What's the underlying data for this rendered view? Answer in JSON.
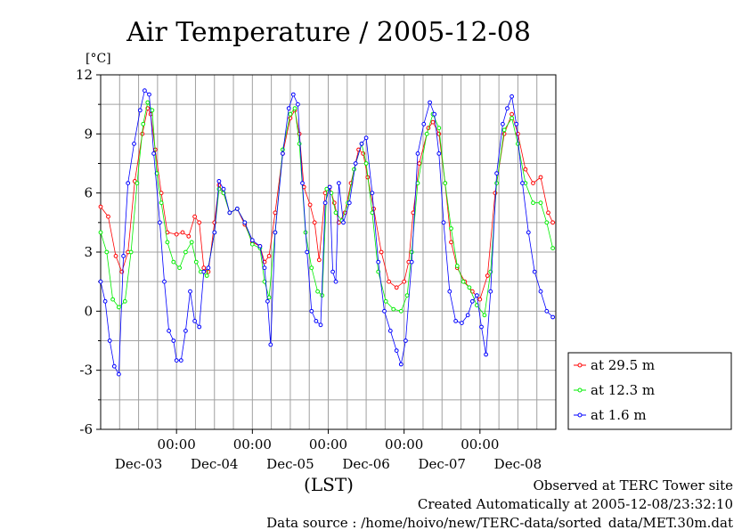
{
  "chart_data": {
    "type": "line",
    "title": "Air Temperature / 2005-12-08",
    "ylabel": "[°C]",
    "xlabel": "(LST)",
    "ylim": [
      -6,
      12
    ],
    "xlim": [
      0,
      6
    ],
    "y_ticks": [
      12,
      9,
      6,
      3,
      0,
      -3,
      -6
    ],
    "y_tick_labels": [
      "12",
      "9",
      "6",
      "3",
      "0",
      "-3",
      "-6"
    ],
    "x_ticks": [
      1,
      2,
      3,
      4,
      5
    ],
    "x_tick_time_labels": [
      "00:00",
      "00:00",
      "00:00",
      "00:00",
      "00:00"
    ],
    "x_day_labels": [
      {
        "x": 0.5,
        "label": "Dec-03"
      },
      {
        "x": 1.5,
        "label": "Dec-04"
      },
      {
        "x": 2.5,
        "label": "Dec-05"
      },
      {
        "x": 3.5,
        "label": "Dec-06"
      },
      {
        "x": 4.5,
        "label": "Dec-07"
      },
      {
        "x": 5.5,
        "label": "Dec-08"
      }
    ],
    "grid": true,
    "legend_position": "right, below plot top",
    "series": [
      {
        "name": "at 29.5 m",
        "color": "#ff0000",
        "points": [
          [
            0.0,
            5.3
          ],
          [
            0.1,
            4.8
          ],
          [
            0.2,
            2.8
          ],
          [
            0.28,
            2.0
          ],
          [
            0.36,
            3.0
          ],
          [
            0.45,
            6.6
          ],
          [
            0.55,
            9.0
          ],
          [
            0.62,
            10.3
          ],
          [
            0.66,
            10.0
          ],
          [
            0.72,
            8.2
          ],
          [
            0.8,
            6.0
          ],
          [
            0.88,
            4.0
          ],
          [
            1.0,
            3.9
          ],
          [
            1.08,
            4.0
          ],
          [
            1.16,
            3.8
          ],
          [
            1.24,
            4.8
          ],
          [
            1.3,
            4.5
          ],
          [
            1.36,
            2.2
          ],
          [
            1.42,
            2.0
          ],
          [
            1.5,
            4.5
          ],
          [
            1.56,
            6.4
          ],
          [
            1.62,
            6.0
          ],
          [
            1.7,
            5.0
          ],
          [
            1.8,
            5.2
          ],
          [
            1.9,
            4.4
          ],
          [
            2.0,
            3.5
          ],
          [
            2.1,
            3.3
          ],
          [
            2.16,
            2.5
          ],
          [
            2.22,
            2.8
          ],
          [
            2.3,
            5.0
          ],
          [
            2.4,
            8.0
          ],
          [
            2.5,
            9.8
          ],
          [
            2.56,
            10.2
          ],
          [
            2.62,
            9.0
          ],
          [
            2.68,
            6.3
          ],
          [
            2.76,
            5.4
          ],
          [
            2.82,
            4.5
          ],
          [
            2.88,
            2.6
          ],
          [
            2.96,
            6.0
          ],
          [
            3.02,
            6.3
          ],
          [
            3.08,
            5.5
          ],
          [
            3.14,
            4.5
          ],
          [
            3.22,
            5.0
          ],
          [
            3.3,
            6.5
          ],
          [
            3.4,
            8.2
          ],
          [
            3.46,
            8.0
          ],
          [
            3.52,
            6.8
          ],
          [
            3.6,
            5.2
          ],
          [
            3.7,
            3.0
          ],
          [
            3.8,
            1.5
          ],
          [
            3.9,
            1.2
          ],
          [
            4.0,
            1.5
          ],
          [
            4.06,
            2.5
          ],
          [
            4.12,
            5.0
          ],
          [
            4.2,
            7.5
          ],
          [
            4.32,
            9.3
          ],
          [
            4.38,
            9.6
          ],
          [
            4.46,
            9.0
          ],
          [
            4.54,
            6.5
          ],
          [
            4.62,
            3.5
          ],
          [
            4.7,
            2.2
          ],
          [
            4.8,
            1.5
          ],
          [
            4.9,
            1.0
          ],
          [
            5.0,
            0.6
          ],
          [
            5.1,
            1.8
          ],
          [
            5.2,
            6.0
          ],
          [
            5.32,
            9.0
          ],
          [
            5.42,
            10.0
          ],
          [
            5.5,
            9.0
          ],
          [
            5.6,
            7.2
          ],
          [
            5.7,
            6.5
          ],
          [
            5.8,
            6.8
          ],
          [
            5.9,
            5.0
          ],
          [
            5.96,
            4.5
          ]
        ]
      },
      {
        "name": "at 12.3 m",
        "color": "#00ee00",
        "points": [
          [
            0.0,
            4.0
          ],
          [
            0.08,
            3.0
          ],
          [
            0.16,
            0.6
          ],
          [
            0.24,
            0.2
          ],
          [
            0.32,
            0.5
          ],
          [
            0.4,
            3.0
          ],
          [
            0.48,
            6.5
          ],
          [
            0.56,
            9.5
          ],
          [
            0.62,
            10.6
          ],
          [
            0.68,
            10.2
          ],
          [
            0.74,
            7.0
          ],
          [
            0.8,
            5.5
          ],
          [
            0.88,
            3.5
          ],
          [
            0.96,
            2.5
          ],
          [
            1.04,
            2.2
          ],
          [
            1.12,
            3.0
          ],
          [
            1.2,
            3.5
          ],
          [
            1.26,
            2.5
          ],
          [
            1.32,
            2.0
          ],
          [
            1.4,
            1.8
          ],
          [
            1.5,
            4.0
          ],
          [
            1.56,
            6.2
          ],
          [
            1.62,
            6.0
          ],
          [
            1.7,
            5.0
          ],
          [
            1.8,
            5.2
          ],
          [
            1.9,
            4.5
          ],
          [
            2.0,
            3.4
          ],
          [
            2.1,
            3.2
          ],
          [
            2.16,
            1.5
          ],
          [
            2.22,
            0.7
          ],
          [
            2.3,
            4.0
          ],
          [
            2.4,
            8.2
          ],
          [
            2.5,
            10.0
          ],
          [
            2.56,
            10.3
          ],
          [
            2.62,
            8.5
          ],
          [
            2.7,
            4.0
          ],
          [
            2.78,
            2.2
          ],
          [
            2.86,
            1.0
          ],
          [
            2.92,
            0.8
          ],
          [
            2.98,
            6.2
          ],
          [
            3.04,
            6.0
          ],
          [
            3.1,
            5.0
          ],
          [
            3.18,
            4.6
          ],
          [
            3.26,
            5.5
          ],
          [
            3.34,
            7.2
          ],
          [
            3.44,
            8.5
          ],
          [
            3.5,
            7.5
          ],
          [
            3.58,
            5.0
          ],
          [
            3.66,
            2.0
          ],
          [
            3.76,
            0.5
          ],
          [
            3.86,
            0.1
          ],
          [
            3.96,
            0.0
          ],
          [
            4.04,
            0.8
          ],
          [
            4.1,
            3.0
          ],
          [
            4.18,
            6.5
          ],
          [
            4.3,
            9.0
          ],
          [
            4.38,
            10.0
          ],
          [
            4.46,
            9.3
          ],
          [
            4.54,
            6.5
          ],
          [
            4.62,
            4.2
          ],
          [
            4.7,
            2.3
          ],
          [
            4.78,
            1.5
          ],
          [
            4.86,
            1.2
          ],
          [
            4.96,
            0.3
          ],
          [
            5.06,
            -0.2
          ],
          [
            5.14,
            2.0
          ],
          [
            5.22,
            6.5
          ],
          [
            5.32,
            9.2
          ],
          [
            5.42,
            9.8
          ],
          [
            5.5,
            8.5
          ],
          [
            5.6,
            6.5
          ],
          [
            5.7,
            5.5
          ],
          [
            5.8,
            5.5
          ],
          [
            5.88,
            4.5
          ],
          [
            5.96,
            3.2
          ]
        ]
      },
      {
        "name": "at 1.6 m",
        "color": "#0000ff",
        "points": [
          [
            0.0,
            1.5
          ],
          [
            0.06,
            0.5
          ],
          [
            0.12,
            -1.5
          ],
          [
            0.18,
            -2.8
          ],
          [
            0.24,
            -3.2
          ],
          [
            0.3,
            2.8
          ],
          [
            0.36,
            6.5
          ],
          [
            0.44,
            8.5
          ],
          [
            0.52,
            10.2
          ],
          [
            0.58,
            11.2
          ],
          [
            0.64,
            11.0
          ],
          [
            0.7,
            8.0
          ],
          [
            0.78,
            4.5
          ],
          [
            0.84,
            1.5
          ],
          [
            0.9,
            -1.0
          ],
          [
            0.96,
            -1.5
          ],
          [
            1.0,
            -2.5
          ],
          [
            1.06,
            -2.5
          ],
          [
            1.12,
            -1.0
          ],
          [
            1.18,
            1.0
          ],
          [
            1.24,
            -0.5
          ],
          [
            1.3,
            -0.8
          ],
          [
            1.36,
            2.0
          ],
          [
            1.42,
            2.2
          ],
          [
            1.5,
            4.0
          ],
          [
            1.56,
            6.6
          ],
          [
            1.62,
            6.2
          ],
          [
            1.7,
            5.0
          ],
          [
            1.8,
            5.2
          ],
          [
            1.9,
            4.5
          ],
          [
            2.0,
            3.6
          ],
          [
            2.1,
            3.3
          ],
          [
            2.16,
            2.2
          ],
          [
            2.2,
            0.5
          ],
          [
            2.24,
            -1.7
          ],
          [
            2.3,
            4.0
          ],
          [
            2.4,
            8.0
          ],
          [
            2.48,
            10.3
          ],
          [
            2.54,
            11.0
          ],
          [
            2.6,
            10.5
          ],
          [
            2.66,
            6.5
          ],
          [
            2.72,
            3.0
          ],
          [
            2.78,
            0.0
          ],
          [
            2.84,
            -0.5
          ],
          [
            2.9,
            -0.7
          ],
          [
            2.96,
            5.5
          ],
          [
            3.02,
            6.3
          ],
          [
            3.06,
            2.0
          ],
          [
            3.1,
            1.5
          ],
          [
            3.14,
            6.5
          ],
          [
            3.2,
            4.5
          ],
          [
            3.28,
            5.5
          ],
          [
            3.36,
            7.5
          ],
          [
            3.44,
            8.5
          ],
          [
            3.5,
            8.8
          ],
          [
            3.58,
            6.0
          ],
          [
            3.66,
            2.5
          ],
          [
            3.74,
            0.0
          ],
          [
            3.82,
            -1.0
          ],
          [
            3.9,
            -2.0
          ],
          [
            3.96,
            -2.7
          ],
          [
            4.02,
            -1.5
          ],
          [
            4.1,
            2.5
          ],
          [
            4.18,
            8.0
          ],
          [
            4.26,
            9.5
          ],
          [
            4.34,
            10.6
          ],
          [
            4.4,
            10.0
          ],
          [
            4.46,
            8.0
          ],
          [
            4.52,
            4.5
          ],
          [
            4.6,
            1.0
          ],
          [
            4.68,
            -0.5
          ],
          [
            4.76,
            -0.6
          ],
          [
            4.84,
            -0.2
          ],
          [
            4.9,
            0.5
          ],
          [
            4.96,
            0.8
          ],
          [
            5.02,
            -0.8
          ],
          [
            5.08,
            -2.2
          ],
          [
            5.14,
            1.0
          ],
          [
            5.22,
            7.0
          ],
          [
            5.3,
            9.5
          ],
          [
            5.36,
            10.3
          ],
          [
            5.42,
            10.9
          ],
          [
            5.48,
            9.5
          ],
          [
            5.56,
            6.5
          ],
          [
            5.64,
            4.0
          ],
          [
            5.72,
            2.0
          ],
          [
            5.8,
            1.0
          ],
          [
            5.88,
            0.0
          ],
          [
            5.96,
            -0.3
          ]
        ]
      }
    ]
  },
  "footer": {
    "line1": "Observed at TERC Tower site",
    "line2": "Created Automatically at 2005-12-08/23:32:10",
    "line3": "Data source : /home/hoivo/new/TERC-data/sorted_data/MET.30m.dat"
  }
}
